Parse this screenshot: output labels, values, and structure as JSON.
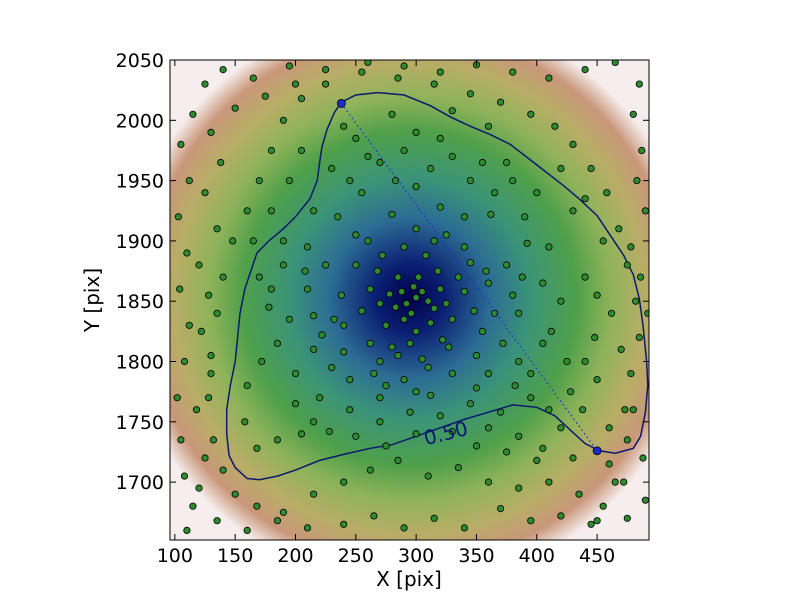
{
  "chart_data": {
    "type": "scatter",
    "title": "",
    "xlabel": "X [pix]",
    "ylabel": "Y [pix]",
    "xlim": [
      96,
      493
    ],
    "ylim": [
      1652,
      2050
    ],
    "xticks": [
      100,
      150,
      200,
      250,
      300,
      350,
      400,
      450
    ],
    "yticks": [
      1700,
      1750,
      1800,
      1850,
      1900,
      1950,
      2000,
      2050
    ],
    "grid": false,
    "density_colormap": [
      "#00004a",
      "#1b3f8a",
      "#3b8f90",
      "#4e9e3c",
      "#a6b35a",
      "#c99a6e",
      "#ffffff"
    ],
    "density_center": [
      295,
      1852
    ],
    "contour": {
      "level_label": "0.50",
      "color": "#0a1a6e",
      "path": [
        [
          238,
          2015
        ],
        [
          250,
          2021
        ],
        [
          268,
          2023
        ],
        [
          290,
          2021
        ],
        [
          312,
          2012
        ],
        [
          328,
          2003
        ],
        [
          345,
          1995
        ],
        [
          362,
          1988
        ],
        [
          378,
          1980
        ],
        [
          400,
          1963
        ],
        [
          422,
          1946
        ],
        [
          435,
          1935
        ],
        [
          450,
          1921
        ],
        [
          462,
          1903
        ],
        [
          472,
          1888
        ],
        [
          480,
          1872
        ],
        [
          485,
          1852
        ],
        [
          488,
          1830
        ],
        [
          491,
          1800
        ],
        [
          492,
          1780
        ],
        [
          490,
          1758
        ],
        [
          486,
          1738
        ],
        [
          480,
          1728
        ],
        [
          465,
          1724
        ],
        [
          452,
          1726
        ],
        [
          440,
          1732
        ],
        [
          428,
          1743
        ],
        [
          415,
          1755
        ],
        [
          400,
          1762
        ],
        [
          380,
          1764
        ],
        [
          360,
          1758
        ],
        [
          340,
          1752
        ],
        [
          320,
          1745
        ],
        [
          300,
          1738
        ],
        [
          280,
          1731
        ],
        [
          262,
          1728
        ],
        [
          240,
          1723
        ],
        [
          220,
          1718
        ],
        [
          200,
          1710
        ],
        [
          185,
          1705
        ],
        [
          170,
          1702
        ],
        [
          160,
          1703
        ],
        [
          150,
          1712
        ],
        [
          145,
          1722
        ],
        [
          143,
          1740
        ],
        [
          143,
          1760
        ],
        [
          146,
          1780
        ],
        [
          150,
          1800
        ],
        [
          152,
          1820
        ],
        [
          154,
          1840
        ],
        [
          158,
          1860
        ],
        [
          163,
          1875
        ],
        [
          168,
          1890
        ],
        [
          178,
          1900
        ],
        [
          190,
          1910
        ],
        [
          200,
          1920
        ],
        [
          212,
          1935
        ],
        [
          218,
          1950
        ],
        [
          220,
          1965
        ],
        [
          222,
          1978
        ],
        [
          226,
          1992
        ],
        [
          232,
          2006
        ],
        [
          238,
          2015
        ]
      ]
    },
    "axis_segment": {
      "start": [
        238,
        2014
      ],
      "end": [
        450,
        1726
      ],
      "color": "#1a2bd6"
    },
    "point_color": "#2e8b2e",
    "points": [
      [
        300,
        1853
      ],
      [
        292,
        1848
      ],
      [
        305,
        1858
      ],
      [
        288,
        1858
      ],
      [
        310,
        1850
      ],
      [
        298,
        1862
      ],
      [
        283,
        1845
      ],
      [
        315,
        1844
      ],
      [
        296,
        1840
      ],
      [
        278,
        1856
      ],
      [
        320,
        1860
      ],
      [
        302,
        1870
      ],
      [
        290,
        1835
      ],
      [
        270,
        1848
      ],
      [
        325,
        1848
      ],
      [
        285,
        1870
      ],
      [
        312,
        1832
      ],
      [
        275,
        1830
      ],
      [
        330,
        1835
      ],
      [
        262,
        1860
      ],
      [
        340,
        1858
      ],
      [
        300,
        1825
      ],
      [
        318,
        1875
      ],
      [
        268,
        1875
      ],
      [
        335,
        1870
      ],
      [
        255,
        1842
      ],
      [
        348,
        1842
      ],
      [
        295,
        1815
      ],
      [
        280,
        1812
      ],
      [
        322,
        1818
      ],
      [
        272,
        1888
      ],
      [
        308,
        1888
      ],
      [
        345,
        1882
      ],
      [
        250,
        1880
      ],
      [
        355,
        1825
      ],
      [
        262,
        1815
      ],
      [
        290,
        1895
      ],
      [
        238,
        1855
      ],
      [
        360,
        1865
      ],
      [
        232,
        1835
      ],
      [
        365,
        1840
      ],
      [
        240,
        1808
      ],
      [
        350,
        1805
      ],
      [
        305,
        1802
      ],
      [
        270,
        1800
      ],
      [
        325,
        1905
      ],
      [
        300,
        1910
      ],
      [
        250,
        1905
      ],
      [
        340,
        1895
      ],
      [
        225,
        1880
      ],
      [
        375,
        1880
      ],
      [
        380,
        1855
      ],
      [
        222,
        1822
      ],
      [
        372,
        1815
      ],
      [
        245,
        1785
      ],
      [
        330,
        1790
      ],
      [
        290,
        1785
      ],
      [
        270,
        1770
      ],
      [
        312,
        1772
      ],
      [
        350,
        1778
      ],
      [
        210,
        1860
      ],
      [
        215,
        1838
      ],
      [
        385,
        1840
      ],
      [
        388,
        1870
      ],
      [
        210,
        1895
      ],
      [
        392,
        1898
      ],
      [
        235,
        1920
      ],
      [
        280,
        1922
      ],
      [
        320,
        1928
      ],
      [
        362,
        1922
      ],
      [
        255,
        1940
      ],
      [
        300,
        1945
      ],
      [
        345,
        1950
      ],
      [
        230,
        1960
      ],
      [
        270,
        1965
      ],
      [
        330,
        1970
      ],
      [
        375,
        1965
      ],
      [
        250,
        1985
      ],
      [
        300,
        1990
      ],
      [
        360,
        1995
      ],
      [
        400,
        1940
      ],
      [
        410,
        1895
      ],
      [
        420,
        1850
      ],
      [
        405,
        1815
      ],
      [
        395,
        1790
      ],
      [
        425,
        1800
      ],
      [
        440,
        1870
      ],
      [
        430,
        1925
      ],
      [
        455,
        1900
      ],
      [
        462,
        1840
      ],
      [
        470,
        1810
      ],
      [
        450,
        1785
      ],
      [
        438,
        1760
      ],
      [
        420,
        1745
      ],
      [
        395,
        1770
      ],
      [
        370,
        1758
      ],
      [
        345,
        1765
      ],
      [
        320,
        1755
      ],
      [
        295,
        1758
      ],
      [
        270,
        1750
      ],
      [
        245,
        1760
      ],
      [
        220,
        1770
      ],
      [
        200,
        1790
      ],
      [
        185,
        1815
      ],
      [
        178,
        1845
      ],
      [
        170,
        1870
      ],
      [
        172,
        1800
      ],
      [
        160,
        1780
      ],
      [
        158,
        1750
      ],
      [
        168,
        1728
      ],
      [
        185,
        1735
      ],
      [
        205,
        1740
      ],
      [
        228,
        1742
      ],
      [
        250,
        1738
      ],
      [
        275,
        1730
      ],
      [
        300,
        1740
      ],
      [
        330,
        1742
      ],
      [
        360,
        1745
      ],
      [
        385,
        1738
      ],
      [
        405,
        1728
      ],
      [
        430,
        1720
      ],
      [
        460,
        1715
      ],
      [
        475,
        1735
      ],
      [
        480,
        1760
      ],
      [
        478,
        1790
      ],
      [
        485,
        1820
      ],
      [
        482,
        1850
      ],
      [
        475,
        1880
      ],
      [
        468,
        1910
      ],
      [
        458,
        1940
      ],
      [
        445,
        1960
      ],
      [
        430,
        1980
      ],
      [
        415,
        1995
      ],
      [
        395,
        2005
      ],
      [
        370,
        2015
      ],
      [
        345,
        2022
      ],
      [
        315,
        2030
      ],
      [
        285,
        2035
      ],
      [
        255,
        2040
      ],
      [
        225,
        2030
      ],
      [
        205,
        2018
      ],
      [
        190,
        2000
      ],
      [
        180,
        1975
      ],
      [
        170,
        1950
      ],
      [
        160,
        1925
      ],
      [
        148,
        1900
      ],
      [
        140,
        1870
      ],
      [
        135,
        1840
      ],
      [
        130,
        1805
      ],
      [
        128,
        1770
      ],
      [
        132,
        1735
      ],
      [
        140,
        1710
      ],
      [
        150,
        1690
      ],
      [
        168,
        1680
      ],
      [
        190,
        1675
      ],
      [
        215,
        1690
      ],
      [
        240,
        1700
      ],
      [
        262,
        1710
      ],
      [
        285,
        1718
      ],
      [
        310,
        1705
      ],
      [
        335,
        1712
      ],
      [
        360,
        1700
      ],
      [
        385,
        1695
      ],
      [
        410,
        1700
      ],
      [
        435,
        1690
      ],
      [
        455,
        1680
      ],
      [
        472,
        1700
      ],
      [
        488,
        1720
      ],
      [
        490,
        1685
      ],
      [
        475,
        1670
      ],
      [
        445,
        1665
      ],
      [
        420,
        1672
      ],
      [
        395,
        1668
      ],
      [
        370,
        1678
      ],
      [
        340,
        1662
      ],
      [
        315,
        1670
      ],
      [
        290,
        1662
      ],
      [
        265,
        1672
      ],
      [
        240,
        1665
      ],
      [
        210,
        1662
      ],
      [
        185,
        1668
      ],
      [
        160,
        1660
      ],
      [
        135,
        1668
      ],
      [
        115,
        1680
      ],
      [
        108,
        1705
      ],
      [
        105,
        1735
      ],
      [
        102,
        1770
      ],
      [
        108,
        1800
      ],
      [
        112,
        1830
      ],
      [
        104,
        1860
      ],
      [
        110,
        1890
      ],
      [
        103,
        1920
      ],
      [
        112,
        1950
      ],
      [
        105,
        1980
      ],
      [
        115,
        2005
      ],
      [
        125,
        2030
      ],
      [
        140,
        2042
      ],
      [
        165,
        2035
      ],
      [
        195,
        2045
      ],
      [
        225,
        2042
      ],
      [
        260,
        2048
      ],
      [
        290,
        2045
      ],
      [
        320,
        2040
      ],
      [
        350,
        2046
      ],
      [
        380,
        2040
      ],
      [
        410,
        2035
      ],
      [
        440,
        2042
      ],
      [
        465,
        2048
      ],
      [
        485,
        2030
      ],
      [
        480,
        2005
      ],
      [
        487,
        1975
      ],
      [
        483,
        1950
      ],
      [
        490,
        1925
      ],
      [
        478,
        1895
      ],
      [
        486,
        1870
      ],
      [
        492,
        1840
      ],
      [
        473,
        1760
      ],
      [
        460,
        1745
      ],
      [
        465,
        1700
      ],
      [
        450,
        1668
      ],
      [
        110,
        1660
      ],
      [
        120,
        1695
      ],
      [
        125,
        1720
      ],
      [
        118,
        1760
      ],
      [
        130,
        1790
      ],
      [
        122,
        1825
      ],
      [
        128,
        1855
      ],
      [
        120,
        1880
      ],
      [
        135,
        1910
      ],
      [
        125,
        1940
      ],
      [
        138,
        1965
      ],
      [
        130,
        1990
      ],
      [
        150,
        2010
      ],
      [
        175,
        2020
      ],
      [
        200,
        2030
      ],
      [
        280,
        2005
      ],
      [
        330,
        2008
      ],
      [
        240,
        1995
      ],
      [
        205,
        1975
      ],
      [
        195,
        1950
      ],
      [
        180,
        1925
      ],
      [
        165,
        1900
      ],
      [
        190,
        1880
      ],
      [
        200,
        1765
      ],
      [
        215,
        1750
      ],
      [
        350,
        1730
      ],
      [
        375,
        1725
      ],
      [
        400,
        1718
      ],
      [
        265,
        1790
      ],
      [
        310,
        1795
      ],
      [
        240,
        1830
      ],
      [
        358,
        1875
      ],
      [
        285,
        1805
      ],
      [
        327,
        1812
      ],
      [
        260,
        1900
      ],
      [
        315,
        1900
      ],
      [
        340,
        1920
      ],
      [
        283,
        1950
      ],
      [
        312,
        1960
      ],
      [
        365,
        1940
      ],
      [
        390,
        1920
      ],
      [
        405,
        1865
      ],
      [
        412,
        1825
      ],
      [
        385,
        1800
      ],
      [
        230,
        1795
      ],
      [
        215,
        1810
      ],
      [
        195,
        1835
      ],
      [
        208,
        1875
      ],
      [
        180,
        1860
      ],
      [
        190,
        1900
      ],
      [
        215,
        1925
      ],
      [
        245,
        1950
      ],
      [
        290,
        1975
      ],
      [
        320,
        1985
      ],
      [
        260,
        1970
      ],
      [
        355,
        1965
      ],
      [
        380,
        1950
      ],
      [
        420,
        1960
      ],
      [
        440,
        1935
      ],
      [
        450,
        1855
      ],
      [
        448,
        1820
      ],
      [
        440,
        1800
      ],
      [
        428,
        1775
      ],
      [
        410,
        1760
      ],
      [
        382,
        1780
      ],
      [
        360,
        1790
      ],
      [
        300,
        1775
      ],
      [
        275,
        1780
      ]
    ]
  }
}
